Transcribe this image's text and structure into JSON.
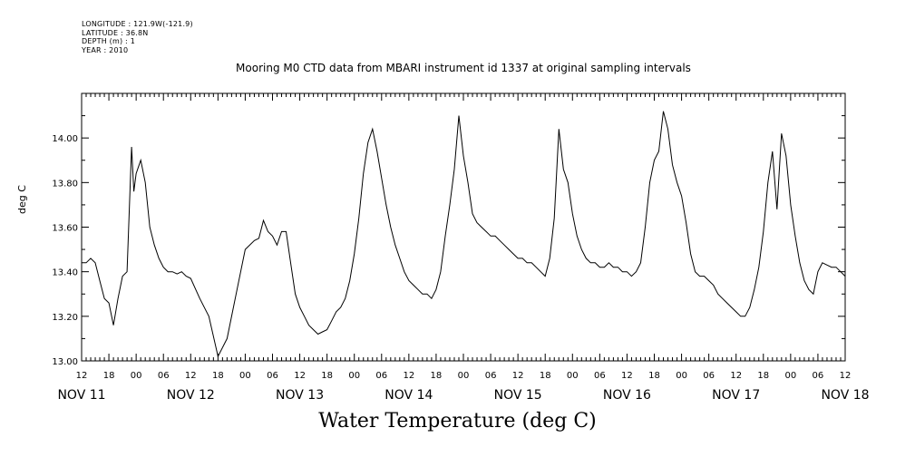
{
  "meta": {
    "longitude": "LONGITUDE : 121.9W(-121.9)",
    "latitude": "LATITUDE : 36.8N",
    "depth": "DEPTH (m) : 1",
    "year": "YEAR : 2010"
  },
  "chart_data": {
    "type": "line",
    "title": "Mooring M0 CTD data from MBARI instrument id 1337 at original sampling intervals",
    "xlabel": "Water Temperature (deg C)",
    "ylabel": "deg C",
    "ylim": [
      13.0,
      14.2
    ],
    "xlim_hours": [
      0,
      168
    ],
    "grid": false,
    "y_ticks": [
      "13.00",
      "13.20",
      "13.40",
      "13.60",
      "13.80",
      "14.00"
    ],
    "hour_tick_labels": [
      "12",
      "18",
      "00",
      "06",
      "12",
      "18",
      "00",
      "06",
      "12",
      "18",
      "00",
      "06",
      "12",
      "18",
      "00",
      "06",
      "12",
      "18",
      "00",
      "06",
      "12",
      "18",
      "00",
      "06",
      "12",
      "18",
      "00",
      "06",
      "12"
    ],
    "day_labels": [
      "NOV 11",
      "NOV 12",
      "NOV 13",
      "NOV 14",
      "NOV 15",
      "NOV 16",
      "NOV 17",
      "NOV 18"
    ],
    "series": [
      {
        "name": "",
        "color": "#000000",
        "x_hours_from_nov11_12": [
          0,
          1,
          2,
          3,
          4,
          5,
          6,
          7,
          8,
          9,
          10,
          11,
          11.5,
          12,
          13,
          14,
          15,
          16,
          17,
          18,
          19,
          20,
          21,
          22,
          23,
          24,
          26,
          28,
          30,
          32,
          34,
          36,
          38,
          39,
          40,
          41,
          42,
          43,
          44,
          45,
          46,
          47,
          48,
          49,
          50,
          51,
          52,
          53,
          54,
          55,
          56,
          57,
          58,
          59,
          60,
          61,
          62,
          63,
          64,
          65,
          66,
          67,
          68,
          69,
          70,
          71,
          72,
          73,
          74,
          75,
          76,
          77,
          78,
          79,
          80,
          81,
          82,
          83,
          84,
          85,
          86,
          87,
          88,
          89,
          90,
          91,
          92,
          93,
          94,
          95,
          96,
          97,
          98,
          99,
          100,
          101,
          102,
          103,
          104,
          105,
          106,
          107,
          108,
          109,
          110,
          111,
          112,
          113,
          114,
          115,
          116,
          117,
          118,
          119,
          120,
          121,
          122,
          123,
          124,
          125,
          126,
          127,
          128,
          129,
          130,
          131,
          132,
          133,
          134,
          135,
          136,
          137,
          138,
          139,
          140,
          141,
          142,
          143,
          144,
          145,
          146,
          147,
          148,
          149,
          150,
          151,
          152,
          153,
          154,
          155,
          156,
          157,
          158,
          159,
          160,
          161,
          162,
          163,
          164,
          165,
          166,
          167,
          168
        ],
        "values": [
          13.44,
          13.44,
          13.46,
          13.44,
          13.36,
          13.28,
          13.26,
          13.16,
          13.28,
          13.38,
          13.4,
          13.96,
          13.76,
          13.84,
          13.9,
          13.8,
          13.6,
          13.52,
          13.46,
          13.42,
          13.4,
          13.4,
          13.39,
          13.4,
          13.38,
          13.37,
          13.28,
          13.2,
          13.02,
          13.1,
          13.3,
          13.5,
          13.54,
          13.55,
          13.63,
          13.58,
          13.56,
          13.52,
          13.58,
          13.58,
          13.44,
          13.3,
          13.24,
          13.2,
          13.16,
          13.14,
          13.12,
          13.13,
          13.14,
          13.18,
          13.22,
          13.24,
          13.28,
          13.36,
          13.48,
          13.64,
          13.84,
          13.98,
          14.04,
          13.94,
          13.82,
          13.7,
          13.6,
          13.52,
          13.46,
          13.4,
          13.36,
          13.34,
          13.32,
          13.3,
          13.3,
          13.28,
          13.32,
          13.4,
          13.56,
          13.7,
          13.86,
          14.1,
          13.92,
          13.8,
          13.66,
          13.62,
          13.6,
          13.58,
          13.56,
          13.56,
          13.54,
          13.52,
          13.5,
          13.48,
          13.46,
          13.46,
          13.44,
          13.44,
          13.42,
          13.4,
          13.38,
          13.46,
          13.64,
          14.04,
          13.86,
          13.8,
          13.66,
          13.56,
          13.5,
          13.46,
          13.44,
          13.44,
          13.42,
          13.42,
          13.44,
          13.42,
          13.42,
          13.4,
          13.4,
          13.38,
          13.4,
          13.44,
          13.6,
          13.8,
          13.9,
          13.94,
          14.12,
          14.04,
          13.88,
          13.8,
          13.74,
          13.62,
          13.48,
          13.4,
          13.38,
          13.38,
          13.36,
          13.34,
          13.3,
          13.28,
          13.26,
          13.24,
          13.22,
          13.2,
          13.2,
          13.24,
          13.32,
          13.42,
          13.58,
          13.8,
          13.94,
          13.68,
          14.02,
          13.92,
          13.7,
          13.56,
          13.44,
          13.36,
          13.32,
          13.3,
          13.4,
          13.44,
          13.43,
          13.42,
          13.42,
          13.4,
          13.38
        ]
      }
    ]
  }
}
